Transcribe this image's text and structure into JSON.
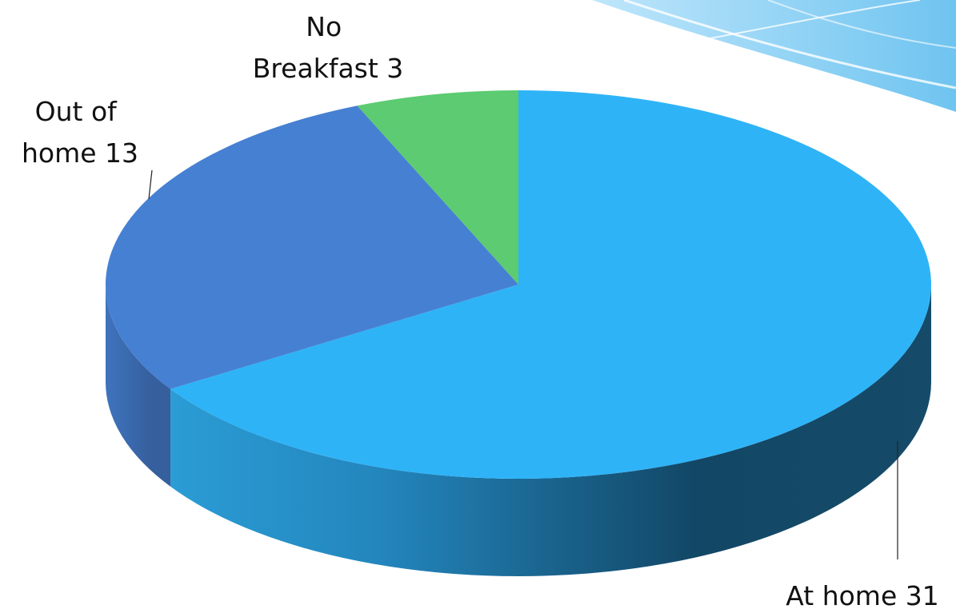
{
  "chart_data": {
    "type": "pie",
    "style": "3d",
    "title": "",
    "categories": [
      "At home",
      "Out of home",
      "No Breakfast"
    ],
    "values": [
      31,
      13,
      3
    ],
    "colors": [
      "#2FB3F7",
      "#4680D2",
      "#5CCB72"
    ],
    "labels": [
      {
        "lines": [
          "At home 31"
        ]
      },
      {
        "lines": [
          "Out of",
          "home 13"
        ]
      },
      {
        "lines": [
          "No",
          "Breakfast 3"
        ]
      }
    ]
  }
}
